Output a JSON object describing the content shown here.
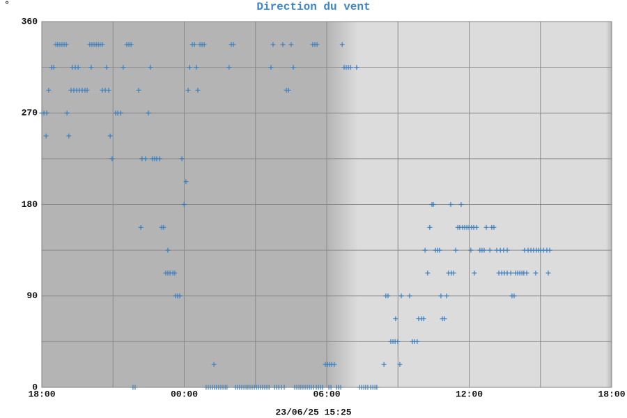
{
  "chart_data": {
    "type": "scatter",
    "title": "Direction du vent",
    "y_label": "°",
    "footer": "23/06/25 15:25",
    "color": "#3a7ebf",
    "xlim": [
      0,
      24
    ],
    "ylim": [
      0,
      360
    ],
    "xticks": [
      {
        "value": 0,
        "label": "18:00"
      },
      {
        "value": 6,
        "label": "00:00"
      },
      {
        "value": 12,
        "label": "06:00"
      },
      {
        "value": 18,
        "label": "12:00"
      },
      {
        "value": 24,
        "label": "18:00"
      }
    ],
    "xminor": [
      3,
      9,
      15,
      21
    ],
    "yticks": [
      0,
      90,
      180,
      270,
      360
    ],
    "yminor": [
      45,
      135,
      225,
      315
    ],
    "grid": true,
    "x": [
      0.59,
      0.67,
      0.76,
      0.85,
      0.94,
      1.03,
      2.02,
      2.11,
      2.2,
      2.29,
      2.38,
      2.46,
      2.55,
      3.58,
      3.67,
      3.76,
      6.34,
      6.43,
      6.66,
      6.75,
      6.84,
      7.98,
      8.07,
      9.74,
      10.15,
      10.5,
      11.41,
      11.5,
      11.59,
      12.65,
      0.41,
      0.5,
      1.29,
      1.41,
      1.53,
      2.08,
      2.73,
      3.43,
      4.58,
      6.22,
      6.51,
      7.89,
      9.65,
      10.59,
      12.73,
      12.82,
      12.91,
      13.0,
      13.26,
      0.29,
      1.23,
      1.35,
      1.47,
      1.58,
      1.7,
      1.82,
      1.91,
      2.55,
      2.67,
      2.82,
      4.08,
      6.16,
      6.57,
      10.3,
      10.39,
      0,
      0.09,
      0.21,
      1.06,
      3.11,
      3.2,
      3.32,
      4.49,
      0.18,
      1.14,
      2.88,
      2.96,
      4.22,
      4.37,
      4.66,
      4.75,
      4.84,
      4.96,
      5.9,
      6.07,
      5.99,
      16.43,
      16.49,
      17.22,
      17.66,
      4.17,
      5.05,
      5.13,
      16.34,
      17.52,
      17.6,
      17.72,
      17.81,
      17.9,
      17.99,
      18.1,
      18.19,
      18.31,
      18.72,
      18.95,
      19.04,
      5.31,
      16.14,
      16.58,
      16.67,
      16.75,
      17.43,
      18.07,
      18.45,
      18.54,
      18.63,
      18.87,
      19.16,
      19.31,
      19.45,
      19.6,
      20.33,
      20.48,
      20.6,
      20.71,
      20.83,
      20.92,
      21.01,
      21.13,
      21.27,
      21.39,
      5.22,
      5.31,
      5.4,
      5.52,
      5.6,
      16.25,
      17.13,
      17.25,
      17.34,
      18.22,
      19.25,
      19.37,
      19.48,
      19.6,
      19.75,
      19.95,
      20.04,
      20.13,
      20.22,
      20.3,
      20.42,
      20.8,
      21.33,
      5.63,
      5.72,
      5.81,
      14.49,
      14.58,
      15.14,
      15.49,
      16.81,
      17.05,
      19.8,
      19.89,
      14.9,
      15.87,
      15.99,
      16.08,
      16.87,
      16.96,
      14.7,
      14.79,
      14.88,
      14.99,
      15.61,
      15.7,
      15.81,
      7.25,
      11.94,
      12.03,
      12.12,
      12.21,
      12.32,
      14.41,
      15.08,
      3.84,
      3.93,
      6.92,
      7.01,
      7.1,
      7.19,
      7.28,
      7.36,
      7.45,
      7.54,
      7.63,
      7.72,
      7.8,
      8.16,
      8.24,
      8.33,
      8.42,
      8.51,
      8.6,
      8.68,
      8.77,
      8.86,
      8.95,
      9.04,
      9.12,
      9.21,
      9.3,
      9.39,
      9.48,
      9.57,
      9.8,
      9.89,
      9.98,
      10.09,
      10.21,
      10.65,
      10.74,
      10.83,
      10.91,
      11.0,
      11.09,
      11.18,
      11.27,
      11.35,
      11.44,
      11.56,
      11.65,
      11.74,
      11.82,
      12.09,
      12.18,
      12.41,
      12.5,
      12.59,
      13.38,
      13.47,
      13.56,
      13.64,
      13.73,
      13.85,
      13.94,
      14.03,
      14.11
    ],
    "values": [
      337.5,
      337.5,
      337.5,
      337.5,
      337.5,
      337.5,
      337.5,
      337.5,
      337.5,
      337.5,
      337.5,
      337.5,
      337.5,
      337.5,
      337.5,
      337.5,
      337.5,
      337.5,
      337.5,
      337.5,
      337.5,
      337.5,
      337.5,
      337.5,
      337.5,
      337.5,
      337.5,
      337.5,
      337.5,
      337.5,
      315,
      315,
      315,
      315,
      315,
      315,
      315,
      315,
      315,
      315,
      315,
      315,
      315,
      315,
      315,
      315,
      315,
      315,
      315,
      292.5,
      292.5,
      292.5,
      292.5,
      292.5,
      292.5,
      292.5,
      292.5,
      292.5,
      292.5,
      292.5,
      292.5,
      292.5,
      292.5,
      292.5,
      292.5,
      270,
      270,
      270,
      270,
      270,
      270,
      270,
      270,
      247.5,
      247.5,
      247.5,
      225,
      225,
      225,
      225,
      225,
      225,
      225,
      225,
      202.5,
      180,
      180,
      180,
      180,
      180,
      157.5,
      157.5,
      157.5,
      157.5,
      157.5,
      157.5,
      157.5,
      157.5,
      157.5,
      157.5,
      157.5,
      157.5,
      157.5,
      157.5,
      157.5,
      157.5,
      135,
      135,
      135,
      135,
      135,
      135,
      135,
      135,
      135,
      135,
      135,
      135,
      135,
      135,
      135,
      135,
      135,
      135,
      135,
      135,
      135,
      135,
      135,
      135,
      135,
      112.5,
      112.5,
      112.5,
      112.5,
      112.5,
      112.5,
      112.5,
      112.5,
      112.5,
      112.5,
      112.5,
      112.5,
      112.5,
      112.5,
      112.5,
      112.5,
      112.5,
      112.5,
      112.5,
      112.5,
      112.5,
      112.5,
      112.5,
      90,
      90,
      90,
      90,
      90,
      90,
      90,
      90,
      90,
      90,
      90,
      67.5,
      67.5,
      67.5,
      67.5,
      67.5,
      67.5,
      45,
      45,
      45,
      45,
      45,
      45,
      45,
      22.5,
      22.5,
      22.5,
      22.5,
      22.5,
      22.5,
      22.5,
      22.5,
      0,
      0,
      0,
      0,
      0,
      0,
      0,
      0,
      0,
      0,
      0,
      0,
      0,
      0,
      0,
      0,
      0,
      0,
      0,
      0,
      0,
      0,
      0,
      0,
      0,
      0,
      0,
      0,
      0,
      0,
      0,
      0,
      0,
      0,
      0,
      0,
      0,
      0,
      0,
      0,
      0,
      0,
      0,
      0,
      0,
      0,
      0,
      0,
      0,
      0,
      0,
      0,
      0,
      0,
      0,
      0,
      0,
      0,
      0,
      0,
      0,
      0,
      0
    ]
  }
}
